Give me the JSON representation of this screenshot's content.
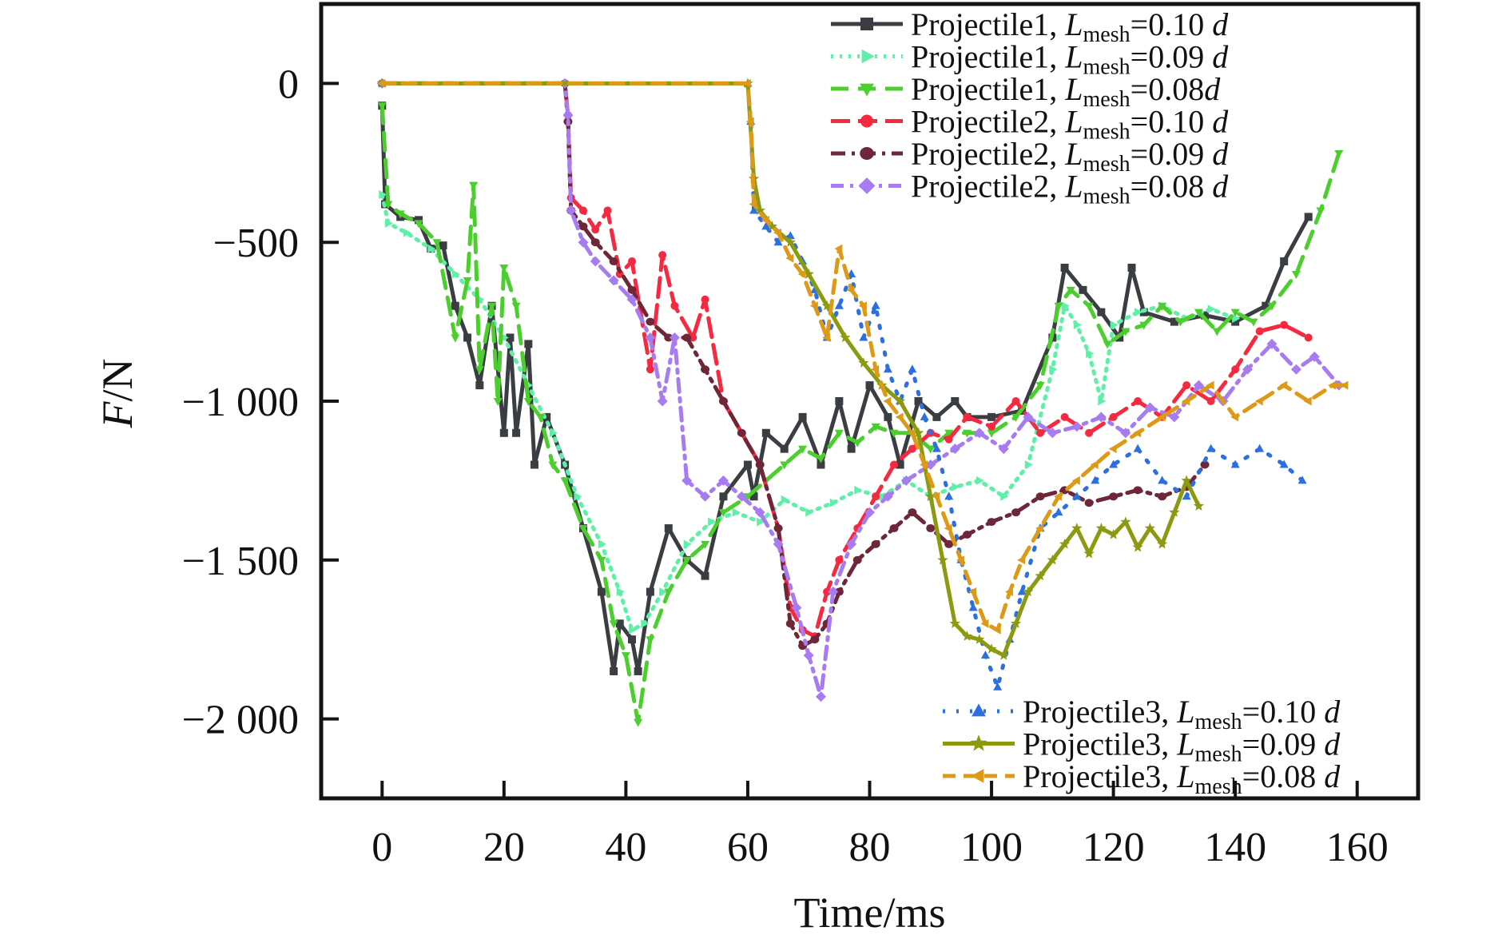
{
  "chart_data": {
    "type": "line",
    "title": "",
    "xlabel": "Time/ms",
    "ylabel_italic": "F",
    "ylabel_unit": "/N",
    "xlim": [
      -10,
      170
    ],
    "ylim": [
      -2250,
      250
    ],
    "xticks": [
      0,
      20,
      40,
      60,
      80,
      100,
      120,
      140,
      160
    ],
    "xtick_labels": [
      "0",
      "20",
      "40",
      "60",
      "80",
      "100",
      "120",
      "140",
      "160"
    ],
    "yticks": [
      0,
      -500,
      -1000,
      -1500,
      -2000
    ],
    "ytick_labels": [
      "0",
      "−500",
      "−1 000",
      "−1 500",
      "−2 000"
    ],
    "grid": false,
    "legend_placement": [
      "top-right",
      "bottom-right"
    ],
    "legend_prefix_L": "L",
    "legend_sub": "mesh",
    "series": [
      {
        "name": "Projectile1, Lmesh=0.10 d",
        "label_main": "Projectile1, ",
        "label_value": "=0.10 ",
        "label_d": "d",
        "color": "#3a3d42",
        "dash": "",
        "marker": "square",
        "legend_group": 1,
        "x": [
          0,
          0.5,
          3,
          6,
          8,
          10,
          12,
          14,
          16,
          18,
          20,
          21,
          22,
          24,
          25,
          27,
          30,
          33,
          36,
          38,
          39,
          41,
          42,
          44,
          47,
          50,
          53,
          56,
          60,
          61,
          63,
          66,
          69,
          72,
          75,
          77,
          80,
          83,
          85,
          88,
          91,
          94,
          96,
          100,
          105,
          110,
          112,
          115,
          118,
          121,
          123,
          125,
          130,
          135,
          140,
          145,
          148,
          152
        ],
        "y": [
          -70,
          -380,
          -420,
          -430,
          -520,
          -510,
          -700,
          -800,
          -950,
          -700,
          -1100,
          -800,
          -1100,
          -820,
          -1200,
          -1050,
          -1200,
          -1400,
          -1600,
          -1850,
          -1700,
          -1750,
          -1850,
          -1600,
          -1400,
          -1500,
          -1550,
          -1300,
          -1200,
          -1300,
          -1100,
          -1150,
          -1050,
          -1200,
          -1000,
          -1150,
          -950,
          -1050,
          -1200,
          -1000,
          -1050,
          -1000,
          -1050,
          -1050,
          -1030,
          -800,
          -580,
          -650,
          -720,
          -800,
          -580,
          -720,
          -750,
          -730,
          -750,
          -700,
          -560,
          -420
        ]
      },
      {
        "name": "Projectile1, Lmesh=0.09 d",
        "label_main": "Projectile1, ",
        "label_value": "=0.09 ",
        "label_d": "d",
        "color": "#5ef0a8",
        "dash": "3 8",
        "marker": "triangle-right",
        "legend_group": 1,
        "x": [
          0,
          1,
          4,
          8,
          12,
          16,
          20,
          24,
          28,
          32,
          36,
          39,
          41,
          43,
          46,
          50,
          54,
          58,
          62,
          66,
          70,
          74,
          78,
          82,
          86,
          90,
          94,
          98,
          102,
          106,
          110,
          112,
          114,
          116,
          118,
          120,
          124,
          128,
          132,
          136,
          140
        ],
        "y": [
          -350,
          -440,
          -470,
          -520,
          -600,
          -680,
          -800,
          -950,
          -1100,
          -1300,
          -1450,
          -1600,
          -1720,
          -1700,
          -1600,
          -1450,
          -1380,
          -1350,
          -1380,
          -1310,
          -1350,
          -1320,
          -1280,
          -1300,
          -1250,
          -1300,
          -1270,
          -1250,
          -1300,
          -1200,
          -900,
          -700,
          -760,
          -850,
          -1000,
          -760,
          -720,
          -700,
          -740,
          -710,
          -740
        ]
      },
      {
        "name": "Projectile1, Lmesh=0.08d",
        "label_main": "Projectile1, ",
        "label_value": "=0.08",
        "label_d": "d",
        "color": "#4ccf2e",
        "dash": "22 12",
        "marker": "triangle-down",
        "legend_group": 1,
        "x": [
          0,
          1,
          3,
          6,
          9,
          12,
          14,
          15,
          16,
          18,
          19,
          20,
          22,
          24,
          26,
          28,
          30,
          33,
          36,
          38,
          40,
          42,
          44,
          47,
          50,
          53,
          56,
          60,
          63,
          66,
          69,
          72,
          75,
          78,
          81,
          84,
          87,
          90,
          93,
          96,
          100,
          104,
          108,
          111,
          113,
          116,
          119,
          122,
          125,
          128,
          131,
          134,
          137,
          140,
          143,
          146,
          150,
          154,
          157
        ],
        "y": [
          -70,
          -380,
          -410,
          -440,
          -500,
          -800,
          -620,
          -320,
          -900,
          -700,
          -1000,
          -580,
          -700,
          -1000,
          -1050,
          -1200,
          -1250,
          -1400,
          -1500,
          -1700,
          -1800,
          -2010,
          -1750,
          -1600,
          -1500,
          -1450,
          -1350,
          -1300,
          -1250,
          -1200,
          -1150,
          -1180,
          -1100,
          -1130,
          -1080,
          -1100,
          -1100,
          -1150,
          -1100,
          -1100,
          -1100,
          -1050,
          -950,
          -700,
          -650,
          -700,
          -820,
          -780,
          -760,
          -700,
          -750,
          -720,
          -780,
          -720,
          -750,
          -700,
          -600,
          -400,
          -220
        ]
      },
      {
        "name": "Projectile2, Lmesh=0.10 d",
        "label_main": "Projectile2, ",
        "label_value": "=0.10 ",
        "label_d": "d",
        "color": "#f5293f",
        "dash": "24 10",
        "marker": "circle",
        "legend_group": 1,
        "x": [
          30,
          30.5,
          31,
          33,
          35,
          37,
          39,
          41,
          44,
          46,
          48,
          51,
          53,
          56,
          59,
          62,
          65,
          67,
          69,
          71,
          73,
          75,
          78,
          81,
          84,
          87,
          90,
          93,
          96,
          100,
          104,
          108,
          112,
          116,
          120,
          124,
          128,
          132,
          136,
          140,
          144,
          148,
          152
        ],
        "y": [
          0,
          -100,
          -360,
          -400,
          -460,
          -400,
          -600,
          -560,
          -900,
          -540,
          -700,
          -800,
          -680,
          -1000,
          -1100,
          -1200,
          -1400,
          -1650,
          -1720,
          -1740,
          -1600,
          -1500,
          -1400,
          -1300,
          -1200,
          -1150,
          -1100,
          -1120,
          -1050,
          -1080,
          -1000,
          -1100,
          -1050,
          -1100,
          -1050,
          -1000,
          -1050,
          -950,
          -1000,
          -900,
          -780,
          -760,
          -800
        ]
      },
      {
        "name": "Projectile2, Lmesh=0.09 d",
        "label_main": "Projectile2, ",
        "label_value": "=0.09 ",
        "label_d": "d",
        "color": "#6e2738",
        "dash": "18 8 4 8",
        "marker": "hexagon",
        "legend_group": 1,
        "x": [
          30,
          30.5,
          31,
          33,
          35,
          38,
          41,
          44,
          47,
          50,
          53,
          56,
          59,
          62,
          65,
          67,
          69,
          71,
          73,
          75,
          78,
          81,
          84,
          87,
          90,
          93,
          96,
          100,
          104,
          108,
          112,
          116,
          120,
          124,
          128,
          132,
          135
        ],
        "y": [
          0,
          -120,
          -400,
          -450,
          -500,
          -560,
          -650,
          -750,
          -800,
          -800,
          -900,
          -1000,
          -1100,
          -1200,
          -1400,
          -1700,
          -1770,
          -1750,
          -1700,
          -1600,
          -1500,
          -1450,
          -1400,
          -1350,
          -1400,
          -1450,
          -1420,
          -1380,
          -1350,
          -1300,
          -1280,
          -1320,
          -1300,
          -1280,
          -1300,
          -1270,
          -1200
        ]
      },
      {
        "name": "Projectile2, Lmesh=0.08 d",
        "label_main": "Projectile2, ",
        "label_value": "=0.08 ",
        "label_d": "d",
        "color": "#a77cf0",
        "dash": "16 8 4 8",
        "marker": "diamond",
        "legend_group": 1,
        "x": [
          30,
          30.5,
          31,
          33,
          35,
          38,
          41,
          44,
          46,
          48,
          50,
          53,
          56,
          59,
          62,
          65,
          68,
          70,
          72,
          74,
          77,
          80,
          83,
          86,
          90,
          94,
          98,
          102,
          106,
          110,
          114,
          118,
          122,
          126,
          130,
          134,
          138,
          142,
          146,
          150,
          153,
          157
        ],
        "y": [
          0,
          -100,
          -400,
          -500,
          -560,
          -620,
          -680,
          -800,
          -1000,
          -800,
          -1250,
          -1300,
          -1250,
          -1300,
          -1350,
          -1450,
          -1650,
          -1800,
          -1930,
          -1600,
          -1450,
          -1350,
          -1300,
          -1250,
          -1200,
          -1150,
          -1100,
          -1150,
          -1050,
          -1100,
          -1080,
          -1050,
          -1100,
          -1020,
          -1050,
          -950,
          -1000,
          -900,
          -820,
          -900,
          -860,
          -950
        ]
      },
      {
        "name": "Projectile3, Lmesh=0.10 d",
        "label_main": "Projectile3, ",
        "label_value": "=0.10 ",
        "label_d": "d",
        "color": "#2b6fe0",
        "dash": "3 14",
        "marker": "triangle-up",
        "legend_group": 2,
        "x": [
          60,
          60.5,
          61,
          63,
          65,
          67,
          69,
          71,
          73,
          75,
          77,
          79,
          81,
          83,
          85,
          87,
          89,
          91,
          93,
          95,
          97,
          99,
          101,
          103,
          105,
          108,
          111,
          114,
          117,
          120,
          124,
          128,
          132,
          136,
          140,
          144,
          148,
          151
        ],
        "y": [
          0,
          -120,
          -400,
          -450,
          -500,
          -480,
          -560,
          -650,
          -800,
          -700,
          -600,
          -800,
          -700,
          -900,
          -1000,
          -900,
          -1050,
          -1150,
          -1300,
          -1500,
          -1650,
          -1800,
          -1900,
          -1750,
          -1600,
          -1400,
          -1350,
          -1300,
          -1250,
          -1200,
          -1150,
          -1250,
          -1300,
          -1150,
          -1200,
          -1150,
          -1200,
          -1250
        ]
      },
      {
        "name": "Projectile3, Lmesh=0.09 d",
        "label_main": "Projectile3, ",
        "label_value": "=0.09 ",
        "label_d": "d",
        "color": "#8c9a12",
        "dash": "",
        "marker": "star",
        "legend_group": 2,
        "x": [
          60,
          61,
          62,
          64,
          67,
          70,
          73,
          76,
          79,
          82,
          85,
          88,
          90,
          92,
          94,
          96,
          98,
          100,
          102,
          104,
          106,
          108,
          110,
          112,
          114,
          116,
          118,
          120,
          122,
          124,
          126,
          128,
          130,
          132,
          134
        ],
        "y": [
          0,
          -300,
          -400,
          -450,
          -500,
          -600,
          -700,
          -800,
          -880,
          -950,
          -1000,
          -1100,
          -1300,
          -1500,
          -1700,
          -1740,
          -1750,
          -1780,
          -1800,
          -1700,
          -1600,
          -1550,
          -1500,
          -1450,
          -1400,
          -1480,
          -1400,
          -1420,
          -1380,
          -1460,
          -1400,
          -1450,
          -1350,
          -1250,
          -1330
        ]
      },
      {
        "name": "Projectile3, Lmesh=0.08 d",
        "label_main": "Projectile3, ",
        "label_value": "=0.08 ",
        "label_d": "d",
        "color": "#dd9a19",
        "dash": "16 10",
        "marker": "triangle-left",
        "legend_group": 2,
        "x": [
          60,
          60.5,
          61,
          63,
          65,
          67,
          69,
          71,
          73,
          75,
          77,
          79,
          81,
          83,
          85,
          87,
          89,
          91,
          93,
          95,
          97,
          99,
          101,
          103,
          105,
          108,
          111,
          114,
          117,
          120,
          124,
          128,
          132,
          136,
          140,
          144,
          148,
          152,
          156,
          158
        ],
        "y": [
          0,
          -120,
          -380,
          -430,
          -470,
          -550,
          -600,
          -700,
          -800,
          -520,
          -650,
          -700,
          -900,
          -1000,
          -1050,
          -1100,
          -1200,
          -1300,
          -1400,
          -1500,
          -1600,
          -1700,
          -1720,
          -1600,
          -1500,
          -1400,
          -1300,
          -1250,
          -1200,
          -1150,
          -1100,
          -1050,
          -1000,
          -950,
          -1050,
          -1000,
          -950,
          -1000,
          -950,
          -950
        ]
      }
    ],
    "legend_entries": [
      "Projectile1, Lmesh=0.10 d",
      "Projectile1, Lmesh=0.09 d",
      "Projectile1, Lmesh=0.08d",
      "Projectile2, Lmesh=0.10 d",
      "Projectile2, Lmesh=0.09 d",
      "Projectile2, Lmesh=0.08 d",
      "Projectile3, Lmesh=0.10 d",
      "Projectile3, Lmesh=0.09 d",
      "Projectile3, Lmesh=0.08 d"
    ]
  }
}
